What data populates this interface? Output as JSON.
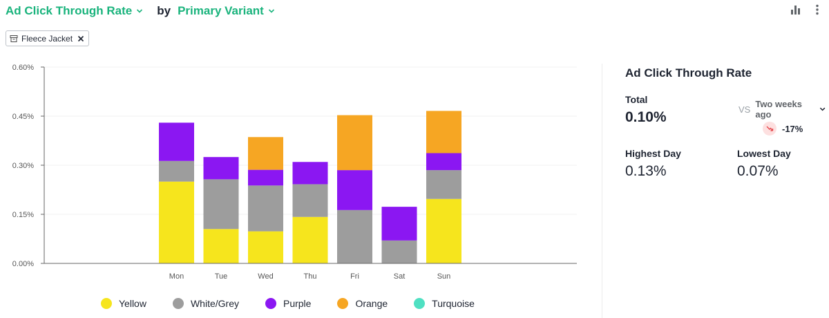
{
  "header": {
    "metric": "Ad Click Through Rate",
    "by": "by",
    "dimension": "Primary Variant"
  },
  "filter": {
    "label": "Fleece Jacket"
  },
  "chart_data": {
    "type": "bar",
    "stacked": true,
    "categories": [
      "Mon",
      "Tue",
      "Wed",
      "Thu",
      "Fri",
      "Sat",
      "Sun"
    ],
    "ylim": [
      0,
      0.6
    ],
    "yticks": [
      "0.00%",
      "0.15%",
      "0.30%",
      "0.45%",
      "0.60%"
    ],
    "ytick_values": [
      0,
      0.15,
      0.3,
      0.45,
      0.6
    ],
    "series": [
      {
        "name": "Yellow",
        "color": "#f6e51d",
        "values": [
          0.25,
          0.105,
          0.098,
          0.142,
          0.0,
          0.0,
          0.197
        ]
      },
      {
        "name": "White/Grey",
        "color": "#9d9d9d",
        "values": [
          0.063,
          0.152,
          0.14,
          0.1,
          0.163,
          0.07,
          0.088
        ]
      },
      {
        "name": "Purple",
        "color": "#8b17f2",
        "values": [
          0.117,
          0.068,
          0.048,
          0.068,
          0.122,
          0.103,
          0.052
        ]
      },
      {
        "name": "Orange",
        "color": "#f6a623",
        "values": [
          0.0,
          0.0,
          0.1,
          0.0,
          0.168,
          0.0,
          0.129
        ]
      },
      {
        "name": "Turquoise",
        "color": "#4fe0c2",
        "values": [
          0,
          0,
          0,
          0,
          0,
          0,
          0
        ]
      }
    ],
    "legend": [
      "Yellow",
      "White/Grey",
      "Purple",
      "Orange",
      "Turquoise"
    ],
    "legend_position": "bottom",
    "grid": true
  },
  "summary": {
    "title": "Ad Click Through Rate",
    "total_label": "Total",
    "total_value": "0.10%",
    "vs_label": "VS",
    "compare_period": "Two weeks ago",
    "change": "-17%",
    "highest_label": "Highest Day",
    "highest_value": "0.13%",
    "lowest_label": "Lowest Day",
    "lowest_value": "0.07%"
  },
  "colors": {
    "accent": "#19b37c",
    "negative": "#e5484d"
  }
}
